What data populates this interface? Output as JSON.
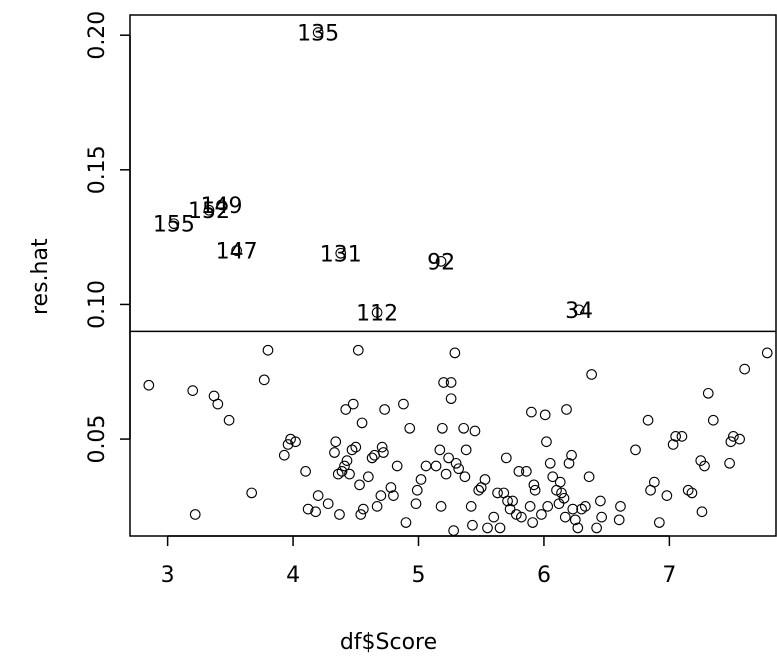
{
  "chart_data": {
    "type": "scatter",
    "title": "",
    "xlabel": "df$Score",
    "ylabel": "res.hat",
    "xlim": [
      2.7,
      7.85
    ],
    "ylim": [
      0.014,
      0.2075
    ],
    "x_ticks": [
      "3",
      "4",
      "5",
      "6",
      "7"
    ],
    "x_tick_values": [
      3,
      4,
      5,
      6,
      7
    ],
    "y_ticks": [
      "0.05",
      "0.10",
      "0.15",
      "0.20"
    ],
    "y_tick_values": [
      0.05,
      0.1,
      0.15,
      0.2
    ],
    "reference_line_y": 0.09,
    "labeled_points": [
      {
        "label": "135",
        "x": 4.2,
        "y": 0.201
      },
      {
        "label": "155",
        "x": 3.05,
        "y": 0.13
      },
      {
        "label": "152",
        "x": 3.33,
        "y": 0.135
      },
      {
        "label": "149",
        "x": 3.43,
        "y": 0.137
      },
      {
        "label": "147",
        "x": 3.55,
        "y": 0.12
      },
      {
        "label": "131",
        "x": 4.38,
        "y": 0.119
      },
      {
        "label": "92",
        "x": 5.18,
        "y": 0.116
      },
      {
        "label": "112",
        "x": 4.67,
        "y": 0.097
      },
      {
        "label": "34",
        "x": 6.28,
        "y": 0.098
      }
    ],
    "points": [
      [
        2.85,
        0.07
      ],
      [
        3.2,
        0.068
      ],
      [
        3.22,
        0.022
      ],
      [
        3.37,
        0.066
      ],
      [
        3.4,
        0.063
      ],
      [
        3.49,
        0.057
      ],
      [
        3.67,
        0.03
      ],
      [
        3.77,
        0.072
      ],
      [
        3.8,
        0.083
      ],
      [
        3.93,
        0.044
      ],
      [
        3.96,
        0.048
      ],
      [
        3.98,
        0.05
      ],
      [
        4.02,
        0.049
      ],
      [
        4.1,
        0.038
      ],
      [
        4.12,
        0.024
      ],
      [
        4.18,
        0.023
      ],
      [
        4.2,
        0.029
      ],
      [
        4.28,
        0.026
      ],
      [
        4.33,
        0.045
      ],
      [
        4.34,
        0.049
      ],
      [
        4.36,
        0.037
      ],
      [
        4.37,
        0.022
      ],
      [
        4.39,
        0.038
      ],
      [
        4.41,
        0.04
      ],
      [
        4.42,
        0.061
      ],
      [
        4.43,
        0.042
      ],
      [
        4.45,
        0.037
      ],
      [
        4.47,
        0.046
      ],
      [
        4.48,
        0.063
      ],
      [
        4.5,
        0.047
      ],
      [
        4.52,
        0.083
      ],
      [
        4.53,
        0.033
      ],
      [
        4.54,
        0.022
      ],
      [
        4.55,
        0.056
      ],
      [
        4.56,
        0.024
      ],
      [
        4.6,
        0.036
      ],
      [
        4.63,
        0.043
      ],
      [
        4.65,
        0.044
      ],
      [
        4.67,
        0.025
      ],
      [
        4.7,
        0.029
      ],
      [
        4.71,
        0.047
      ],
      [
        4.72,
        0.045
      ],
      [
        4.73,
        0.061
      ],
      [
        4.78,
        0.032
      ],
      [
        4.8,
        0.029
      ],
      [
        4.83,
        0.04
      ],
      [
        4.88,
        0.063
      ],
      [
        4.9,
        0.019
      ],
      [
        4.93,
        0.054
      ],
      [
        4.98,
        0.026
      ],
      [
        4.99,
        0.031
      ],
      [
        5.02,
        0.035
      ],
      [
        5.06,
        0.04
      ],
      [
        5.14,
        0.04
      ],
      [
        5.17,
        0.046
      ],
      [
        5.18,
        0.025
      ],
      [
        5.19,
        0.054
      ],
      [
        5.2,
        0.071
      ],
      [
        5.22,
        0.037
      ],
      [
        5.24,
        0.043
      ],
      [
        5.26,
        0.065
      ],
      [
        5.26,
        0.071
      ],
      [
        5.28,
        0.016
      ],
      [
        5.29,
        0.082
      ],
      [
        5.3,
        0.041
      ],
      [
        5.32,
        0.039
      ],
      [
        5.36,
        0.054
      ],
      [
        5.37,
        0.036
      ],
      [
        5.38,
        0.046
      ],
      [
        5.42,
        0.025
      ],
      [
        5.43,
        0.018
      ],
      [
        5.45,
        0.053
      ],
      [
        5.48,
        0.031
      ],
      [
        5.5,
        0.032
      ],
      [
        5.53,
        0.035
      ],
      [
        5.55,
        0.017
      ],
      [
        5.6,
        0.021
      ],
      [
        5.63,
        0.03
      ],
      [
        5.65,
        0.017
      ],
      [
        5.68,
        0.03
      ],
      [
        5.7,
        0.043
      ],
      [
        5.71,
        0.027
      ],
      [
        5.73,
        0.024
      ],
      [
        5.75,
        0.027
      ],
      [
        5.78,
        0.022
      ],
      [
        5.8,
        0.038
      ],
      [
        5.82,
        0.021
      ],
      [
        5.86,
        0.038
      ],
      [
        5.89,
        0.025
      ],
      [
        5.9,
        0.06
      ],
      [
        5.91,
        0.019
      ],
      [
        5.92,
        0.033
      ],
      [
        5.93,
        0.031
      ],
      [
        5.98,
        0.022
      ],
      [
        6.01,
        0.059
      ],
      [
        6.02,
        0.049
      ],
      [
        6.03,
        0.025
      ],
      [
        6.05,
        0.041
      ],
      [
        6.07,
        0.036
      ],
      [
        6.1,
        0.031
      ],
      [
        6.12,
        0.026
      ],
      [
        6.13,
        0.034
      ],
      [
        6.14,
        0.03
      ],
      [
        6.16,
        0.028
      ],
      [
        6.17,
        0.021
      ],
      [
        6.18,
        0.061
      ],
      [
        6.2,
        0.041
      ],
      [
        6.22,
        0.044
      ],
      [
        6.23,
        0.024
      ],
      [
        6.25,
        0.02
      ],
      [
        6.27,
        0.017
      ],
      [
        6.3,
        0.024
      ],
      [
        6.33,
        0.025
      ],
      [
        6.36,
        0.036
      ],
      [
        6.38,
        0.074
      ],
      [
        6.42,
        0.017
      ],
      [
        6.45,
        0.027
      ],
      [
        6.46,
        0.021
      ],
      [
        6.6,
        0.02
      ],
      [
        6.61,
        0.025
      ],
      [
        6.73,
        0.046
      ],
      [
        6.83,
        0.057
      ],
      [
        6.85,
        0.031
      ],
      [
        6.88,
        0.034
      ],
      [
        6.92,
        0.019
      ],
      [
        6.98,
        0.029
      ],
      [
        7.03,
        0.048
      ],
      [
        7.05,
        0.051
      ],
      [
        7.1,
        0.051
      ],
      [
        7.15,
        0.031
      ],
      [
        7.18,
        0.03
      ],
      [
        7.25,
        0.042
      ],
      [
        7.26,
        0.023
      ],
      [
        7.28,
        0.04
      ],
      [
        7.31,
        0.067
      ],
      [
        7.35,
        0.057
      ],
      [
        7.48,
        0.041
      ],
      [
        7.49,
        0.049
      ],
      [
        7.51,
        0.051
      ],
      [
        7.56,
        0.05
      ],
      [
        7.6,
        0.076
      ],
      [
        7.78,
        0.082
      ]
    ]
  }
}
